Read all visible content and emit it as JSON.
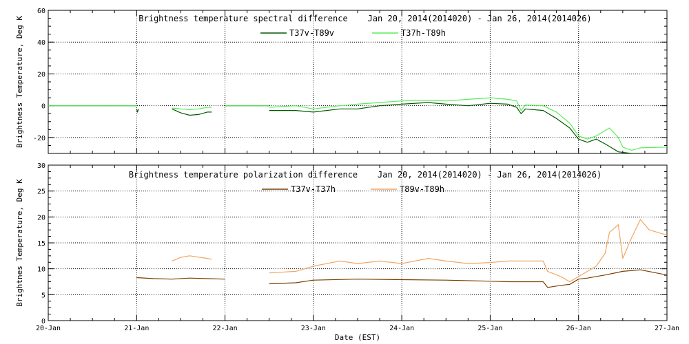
{
  "chart_data": [
    {
      "type": "line",
      "title": "Brightness temperature spectral difference    Jan 20, 2014(2014020) - Jan 26, 2014(2014026)",
      "ylabel": "Brightness Temperature, Deg K",
      "xlabel": "",
      "ylim": [
        -30,
        60
      ],
      "xlim": [
        0,
        7
      ],
      "yticks": [
        -20,
        0,
        20,
        40,
        60
      ],
      "ytick_labels": [
        "-20",
        "0",
        "20",
        "40",
        "60"
      ],
      "grid": true,
      "legend_position": "top-center",
      "series": [
        {
          "name": "T37v-T89v",
          "color": "#005a00",
          "segments": [
            [
              [
                0,
                0
              ],
              [
                1.0,
                0
              ]
            ],
            [
              [
                1.0,
                -2
              ],
              [
                1.01,
                -4
              ],
              [
                1.02,
                -2
              ]
            ],
            [
              [
                1.4,
                -2
              ],
              [
                1.5,
                -4.5
              ],
              [
                1.6,
                -6
              ],
              [
                1.7,
                -5.5
              ],
              [
                1.8,
                -4
              ],
              [
                1.85,
                -4
              ]
            ],
            [
              [
                2.0,
                0
              ],
              [
                2.5,
                0
              ]
            ],
            [
              [
                2.5,
                -3
              ],
              [
                2.8,
                -3
              ],
              [
                3.0,
                -4
              ],
              [
                3.3,
                -2
              ],
              [
                3.5,
                -2
              ],
              [
                3.75,
                0
              ],
              [
                4.0,
                1
              ],
              [
                4.3,
                2
              ],
              [
                4.5,
                1
              ],
              [
                4.75,
                0
              ],
              [
                5.0,
                1.5
              ],
              [
                5.2,
                1
              ],
              [
                5.3,
                -1
              ],
              [
                5.35,
                -5
              ],
              [
                5.4,
                -2
              ],
              [
                5.6,
                -3
              ],
              [
                5.75,
                -8
              ],
              [
                5.9,
                -14
              ],
              [
                6.0,
                -21
              ],
              [
                6.1,
                -23
              ],
              [
                6.2,
                -21
              ],
              [
                6.3,
                -24
              ],
              [
                6.45,
                -29
              ],
              [
                6.6,
                -30
              ]
            ]
          ]
        },
        {
          "name": "T37h-T89h",
          "color": "#55ee55",
          "segments": [
            [
              [
                0,
                0
              ],
              [
                1.0,
                0
              ]
            ],
            [
              [
                1.4,
                -1.5
              ],
              [
                1.5,
                -2
              ],
              [
                1.6,
                -2.5
              ],
              [
                1.7,
                -2
              ],
              [
                1.8,
                -1
              ],
              [
                1.85,
                -1
              ]
            ],
            [
              [
                2.0,
                0
              ],
              [
                2.5,
                0
              ]
            ],
            [
              [
                2.5,
                -1
              ],
              [
                2.8,
                0
              ],
              [
                3.0,
                -2
              ],
              [
                3.3,
                0
              ],
              [
                3.5,
                1
              ],
              [
                3.75,
                2
              ],
              [
                4.0,
                3
              ],
              [
                4.3,
                3.5
              ],
              [
                4.5,
                3
              ],
              [
                4.75,
                4
              ],
              [
                5.0,
                5
              ],
              [
                5.2,
                4
              ],
              [
                5.3,
                3
              ],
              [
                5.35,
                -3
              ],
              [
                5.4,
                0.5
              ],
              [
                5.6,
                0
              ],
              [
                5.75,
                -4
              ],
              [
                5.9,
                -11
              ],
              [
                6.0,
                -19
              ],
              [
                6.1,
                -21
              ],
              [
                6.2,
                -19
              ],
              [
                6.35,
                -14
              ],
              [
                6.45,
                -20
              ],
              [
                6.5,
                -26
              ],
              [
                6.6,
                -28
              ],
              [
                6.7,
                -26.5
              ],
              [
                7.0,
                -26
              ]
            ]
          ]
        }
      ]
    },
    {
      "type": "line",
      "title": "Brightness temperature polarization difference    Jan 20, 2014(2014020) - Jan 26, 2014(2014026)",
      "ylabel": "Brightnes Temperature, Deg K",
      "xlabel": "Date (EST)",
      "ylim": [
        0,
        30
      ],
      "xlim": [
        0,
        7
      ],
      "yticks": [
        0,
        5,
        10,
        15,
        20,
        25,
        30
      ],
      "ytick_labels": [
        "0",
        "5",
        "10",
        "15",
        "20",
        "25",
        "30"
      ],
      "xticks": [
        0,
        1,
        2,
        3,
        4,
        5,
        6,
        7
      ],
      "xtick_labels": [
        "20-Jan",
        "21-Jan",
        "22-Jan",
        "23-Jan",
        "24-Jan",
        "25-Jan",
        "26-Jan",
        "27-Jan"
      ],
      "grid": true,
      "legend_position": "top-center",
      "series": [
        {
          "name": "T37v-T37h",
          "color": "#7a3d00",
          "segments": [
            [
              [
                1.0,
                8.3
              ],
              [
                1.2,
                8.1
              ],
              [
                1.4,
                8.0
              ],
              [
                1.6,
                8.2
              ],
              [
                1.8,
                8.1
              ],
              [
                2.0,
                8.0
              ]
            ],
            [
              [
                2.5,
                7.1
              ],
              [
                2.8,
                7.3
              ],
              [
                3.0,
                7.8
              ],
              [
                3.5,
                8.0
              ],
              [
                4.0,
                7.9
              ],
              [
                4.5,
                7.8
              ],
              [
                5.0,
                7.6
              ],
              [
                5.2,
                7.5
              ],
              [
                5.4,
                7.5
              ],
              [
                5.6,
                7.5
              ],
              [
                5.65,
                6.4
              ],
              [
                5.8,
                6.8
              ],
              [
                5.9,
                7.0
              ],
              [
                6.0,
                8.0
              ],
              [
                6.1,
                8.2
              ],
              [
                6.3,
                8.8
              ],
              [
                6.5,
                9.5
              ],
              [
                6.7,
                9.8
              ],
              [
                7.0,
                8.8
              ]
            ]
          ]
        },
        {
          "name": "T89v-T89h",
          "color": "#f4a460",
          "segments": [
            [
              [
                1.4,
                11.5
              ],
              [
                1.5,
                12.2
              ],
              [
                1.6,
                12.5
              ],
              [
                1.8,
                12.0
              ],
              [
                1.85,
                11.8
              ]
            ],
            [
              [
                2.5,
                9.2
              ],
              [
                2.8,
                9.5
              ],
              [
                3.0,
                10.5
              ],
              [
                3.3,
                11.5
              ],
              [
                3.5,
                11.0
              ],
              [
                3.75,
                11.5
              ],
              [
                4.0,
                11.0
              ],
              [
                4.3,
                12.0
              ],
              [
                4.5,
                11.5
              ],
              [
                4.75,
                11.0
              ],
              [
                5.0,
                11.2
              ],
              [
                5.2,
                11.5
              ],
              [
                5.4,
                11.5
              ],
              [
                5.6,
                11.5
              ],
              [
                5.65,
                9.5
              ],
              [
                5.8,
                8.5
              ],
              [
                5.9,
                7.5
              ],
              [
                6.0,
                8.5
              ],
              [
                6.2,
                10.5
              ],
              [
                6.3,
                13.0
              ],
              [
                6.35,
                17.0
              ],
              [
                6.45,
                18.5
              ],
              [
                6.5,
                12.0
              ],
              [
                6.6,
                16.0
              ],
              [
                6.7,
                19.5
              ],
              [
                6.8,
                17.5
              ],
              [
                7.0,
                16.5
              ]
            ]
          ]
        }
      ]
    }
  ]
}
